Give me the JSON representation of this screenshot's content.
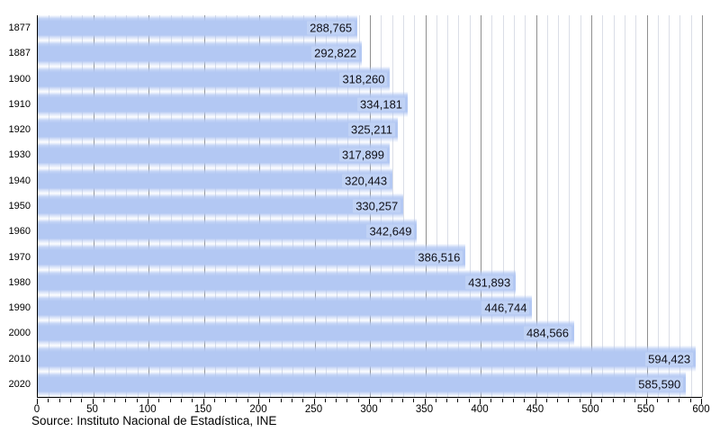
{
  "chart_data": {
    "type": "bar",
    "orientation": "horizontal",
    "title": "",
    "xlabel": "",
    "ylabel": "",
    "categories": [
      "1877",
      "1887",
      "1900",
      "1910",
      "1920",
      "1930",
      "1940",
      "1950",
      "1960",
      "1970",
      "1980",
      "1990",
      "2000",
      "2010",
      "2020"
    ],
    "values": [
      288765,
      292822,
      318260,
      334181,
      325211,
      317899,
      320443,
      330257,
      342649,
      386516,
      431893,
      446744,
      484566,
      594423,
      585590
    ],
    "value_labels": [
      "288,765",
      "292,822",
      "318,260",
      "334,181",
      "325,211",
      "317,899",
      "320,443",
      "330,257",
      "342,649",
      "386,516",
      "431,893",
      "446,744",
      "484,566",
      "594,423",
      "585,590"
    ],
    "axis_unit": "thousands",
    "xlim_thousands": [
      0,
      600
    ],
    "x_major_step": 50,
    "x_minor_step": 10,
    "x_tick_labels": [
      "0",
      "50",
      "100",
      "150",
      "200",
      "250",
      "300",
      "350",
      "400",
      "450",
      "500",
      "550",
      "600"
    ],
    "grid": true,
    "legend": null,
    "source_label": "Source: Instituto Nacional de Estadística, INE",
    "colors": {
      "bar": "#b3c8f3",
      "minor_grid": "#dadee7",
      "major_grid": "#8f8f8f",
      "axis": "#000000",
      "text": "#000000"
    }
  }
}
